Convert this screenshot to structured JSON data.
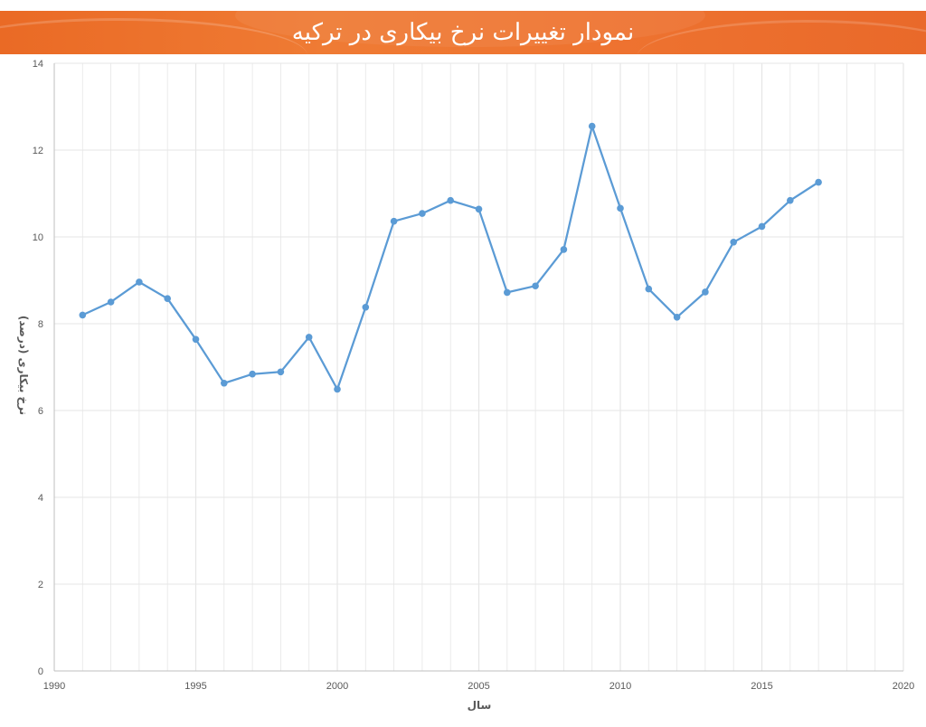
{
  "title": "نمودار تغییرات نرخ بیکاری در ترکیه",
  "colors": {
    "banner": "#ee7330",
    "line": "#5b9bd5",
    "grid": "#e6e6e6"
  },
  "chart_data": {
    "type": "scatter",
    "mode": "lines+markers",
    "title": "نمودار تغییرات نرخ بیکاری در ترکیه",
    "xlabel": "سال",
    "ylabel": "نرخ بیکاری (درصد)",
    "xlim": [
      1990,
      2020
    ],
    "ylim": [
      0,
      14
    ],
    "x_ticks": [
      "1990",
      "1995",
      "2000",
      "2005",
      "2010",
      "2015",
      "2020"
    ],
    "y_ticks": [
      "0",
      "2",
      "4",
      "6",
      "8",
      "10",
      "12",
      "14"
    ],
    "grid": true,
    "x": [
      1991,
      1992,
      1993,
      1994,
      1995,
      1996,
      1997,
      1998,
      1999,
      2000,
      2001,
      2002,
      2003,
      2004,
      2005,
      2006,
      2007,
      2008,
      2009,
      2010,
      2011,
      2012,
      2013,
      2014,
      2015,
      2016,
      2017
    ],
    "y": [
      8.2,
      8.5,
      8.96,
      8.58,
      7.64,
      6.63,
      6.84,
      6.89,
      7.69,
      6.49,
      8.38,
      10.36,
      10.54,
      10.84,
      10.64,
      8.72,
      8.87,
      9.71,
      12.55,
      10.66,
      8.8,
      8.15,
      8.73,
      9.88,
      10.24,
      10.84,
      11.26
    ]
  }
}
